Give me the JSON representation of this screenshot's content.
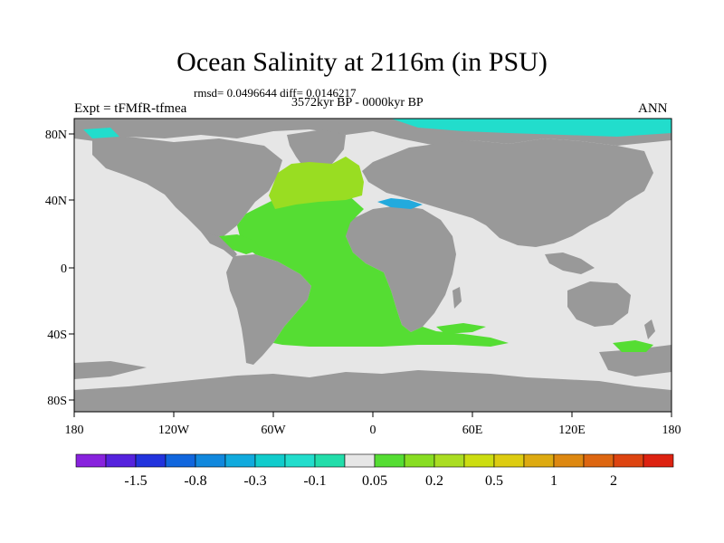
{
  "title": "Ocean Salinity at 2116m (in PSU)",
  "stats": "rmsd= 0.0496644 diff= 0.0146217",
  "period": "3572kyr BP - 0000kyr BP",
  "experiment": "Expt = tFMfR-tfmea",
  "season": "ANN",
  "map": {
    "lon_ticks": [
      "180",
      "120W",
      "60W",
      "0",
      "60E",
      "120E",
      "180"
    ],
    "lat_ticks": [
      "80N",
      "40N",
      "0",
      "40S",
      "80S"
    ],
    "colors": {
      "land": "#999999",
      "ocean_no_change": "#e6e6e6",
      "positive_fill": "#55dd33",
      "north_atlantic_fill": "#99dd22",
      "arctic_fill": "#22ddcc",
      "med_fill": "#22aadd"
    }
  },
  "colorbar": {
    "labels": [
      "-1.5",
      "-0.8",
      "-0.3",
      "-0.1",
      "0.05",
      "0.2",
      "0.5",
      "1",
      "2"
    ],
    "colors": [
      "#8822dd",
      "#5522dd",
      "#2233dd",
      "#1166dd",
      "#1188dd",
      "#11aadd",
      "#11cccc",
      "#22ddcc",
      "#22ddaa",
      "#e6e6e6",
      "#55dd33",
      "#88dd22",
      "#aadd22",
      "#ccdd11",
      "#ddcc11",
      "#ddaa11",
      "#dd8811",
      "#dd6611",
      "#dd4411",
      "#dd2211"
    ]
  }
}
